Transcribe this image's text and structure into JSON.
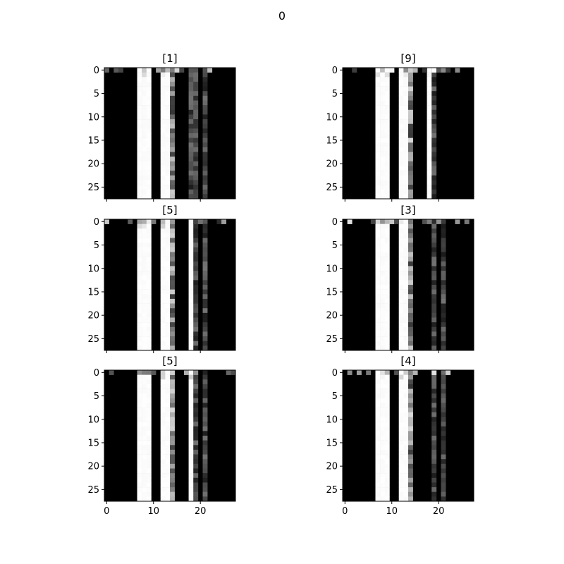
{
  "figure_title": "0",
  "chart_data": [
    {
      "type": "heatmap",
      "title": "[1]",
      "colormap": "gray",
      "grid": false,
      "x_ticks": [
        "0",
        "10",
        "20"
      ],
      "y_ticks": [
        "0",
        "5",
        "10",
        "15",
        "20",
        "25"
      ],
      "xlim": [
        -0.5,
        27.5
      ],
      "ylim": [
        27.5,
        -0.5
      ],
      "show_x_tick_labels": false,
      "bright_columns": [
        7,
        8,
        9,
        12,
        13
      ],
      "textured_columns": [
        14,
        18,
        19,
        21
      ],
      "top_row_speckle": true
    },
    {
      "type": "heatmap",
      "title": "[9]",
      "colormap": "gray",
      "grid": false,
      "x_ticks": [
        "0",
        "10",
        "20"
      ],
      "y_ticks": [
        "0",
        "5",
        "10",
        "15",
        "20",
        "25"
      ],
      "xlim": [
        -0.5,
        27.5
      ],
      "ylim": [
        27.5,
        -0.5
      ],
      "show_x_tick_labels": false,
      "bright_columns": [
        7,
        8,
        9,
        12,
        13,
        18
      ],
      "textured_columns": [
        14,
        19
      ],
      "top_row_speckle": true
    },
    {
      "type": "heatmap",
      "title": "[5]",
      "colormap": "gray",
      "grid": false,
      "x_ticks": [
        "0",
        "10",
        "20"
      ],
      "y_ticks": [
        "0",
        "5",
        "10",
        "15",
        "20",
        "25"
      ],
      "xlim": [
        -0.5,
        27.5
      ],
      "ylim": [
        27.5,
        -0.5
      ],
      "show_x_tick_labels": false,
      "bright_columns": [
        7,
        8,
        9,
        12,
        13,
        18
      ],
      "textured_columns": [
        14,
        19,
        21
      ],
      "top_row_speckle": true
    },
    {
      "type": "heatmap",
      "title": "[3]",
      "colormap": "gray",
      "grid": false,
      "x_ticks": [
        "0",
        "10",
        "20"
      ],
      "y_ticks": [
        "0",
        "5",
        "10",
        "15",
        "20",
        "25"
      ],
      "xlim": [
        -0.5,
        27.5
      ],
      "ylim": [
        27.5,
        -0.5
      ],
      "show_x_tick_labels": false,
      "bright_columns": [
        7,
        8,
        9,
        12,
        13
      ],
      "textured_columns": [
        14,
        19,
        21
      ],
      "top_row_speckle": true
    },
    {
      "type": "heatmap",
      "title": "[5]",
      "colormap": "gray",
      "grid": false,
      "x_ticks": [
        "0",
        "10",
        "20"
      ],
      "y_ticks": [
        "0",
        "5",
        "10",
        "15",
        "20",
        "25"
      ],
      "xlim": [
        -0.5,
        27.5
      ],
      "ylim": [
        27.5,
        -0.5
      ],
      "show_x_tick_labels": true,
      "bright_columns": [
        7,
        8,
        9,
        12,
        13,
        18
      ],
      "textured_columns": [
        14,
        19,
        21
      ],
      "top_row_speckle": true
    },
    {
      "type": "heatmap",
      "title": "[4]",
      "colormap": "gray",
      "grid": false,
      "x_ticks": [
        "0",
        "10",
        "20"
      ],
      "y_ticks": [
        "0",
        "5",
        "10",
        "15",
        "20",
        "25"
      ],
      "xlim": [
        -0.5,
        27.5
      ],
      "ylim": [
        27.5,
        -0.5
      ],
      "show_x_tick_labels": true,
      "bright_columns": [
        7,
        8,
        9,
        12,
        13
      ],
      "textured_columns": [
        14,
        19,
        21
      ],
      "top_row_speckle": true
    }
  ]
}
